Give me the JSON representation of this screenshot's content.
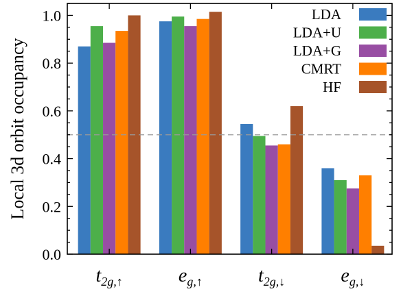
{
  "chart_data": {
    "type": "bar",
    "title": "",
    "xlabel": "",
    "ylabel": "Local 3d orbit occupancy",
    "ylim": [
      0,
      1.05
    ],
    "yticks": [
      "0.0",
      "0.2",
      "0.4",
      "0.6",
      "0.8",
      "1.0"
    ],
    "ytick_values": [
      0,
      0.2,
      0.4,
      0.6,
      0.8,
      1.0
    ],
    "reference_line": {
      "y": 0.5,
      "style": "dashed",
      "color": "#999999"
    },
    "categories": [
      {
        "main": "t",
        "sub": "2g,↑"
      },
      {
        "main": "e",
        "sub": "g,↑"
      },
      {
        "main": "t",
        "sub": "2g,↓"
      },
      {
        "main": "e",
        "sub": "g,↓"
      }
    ],
    "series": [
      {
        "name": "LDA",
        "color": "#3a7bbf",
        "values": [
          0.87,
          0.975,
          0.545,
          0.36
        ]
      },
      {
        "name": "LDA+U",
        "color": "#4daf4a",
        "values": [
          0.955,
          0.995,
          0.495,
          0.31
        ]
      },
      {
        "name": "LDA+G",
        "color": "#984ea3",
        "values": [
          0.885,
          0.955,
          0.455,
          0.275
        ]
      },
      {
        "name": "CMRT",
        "color": "#ff7f00",
        "values": [
          0.935,
          0.985,
          0.46,
          0.33
        ]
      },
      {
        "name": "HF",
        "color": "#a6542a",
        "values": [
          1.0,
          1.015,
          0.62,
          0.035
        ]
      }
    ],
    "legend_position": "top-right",
    "grid": false
  }
}
